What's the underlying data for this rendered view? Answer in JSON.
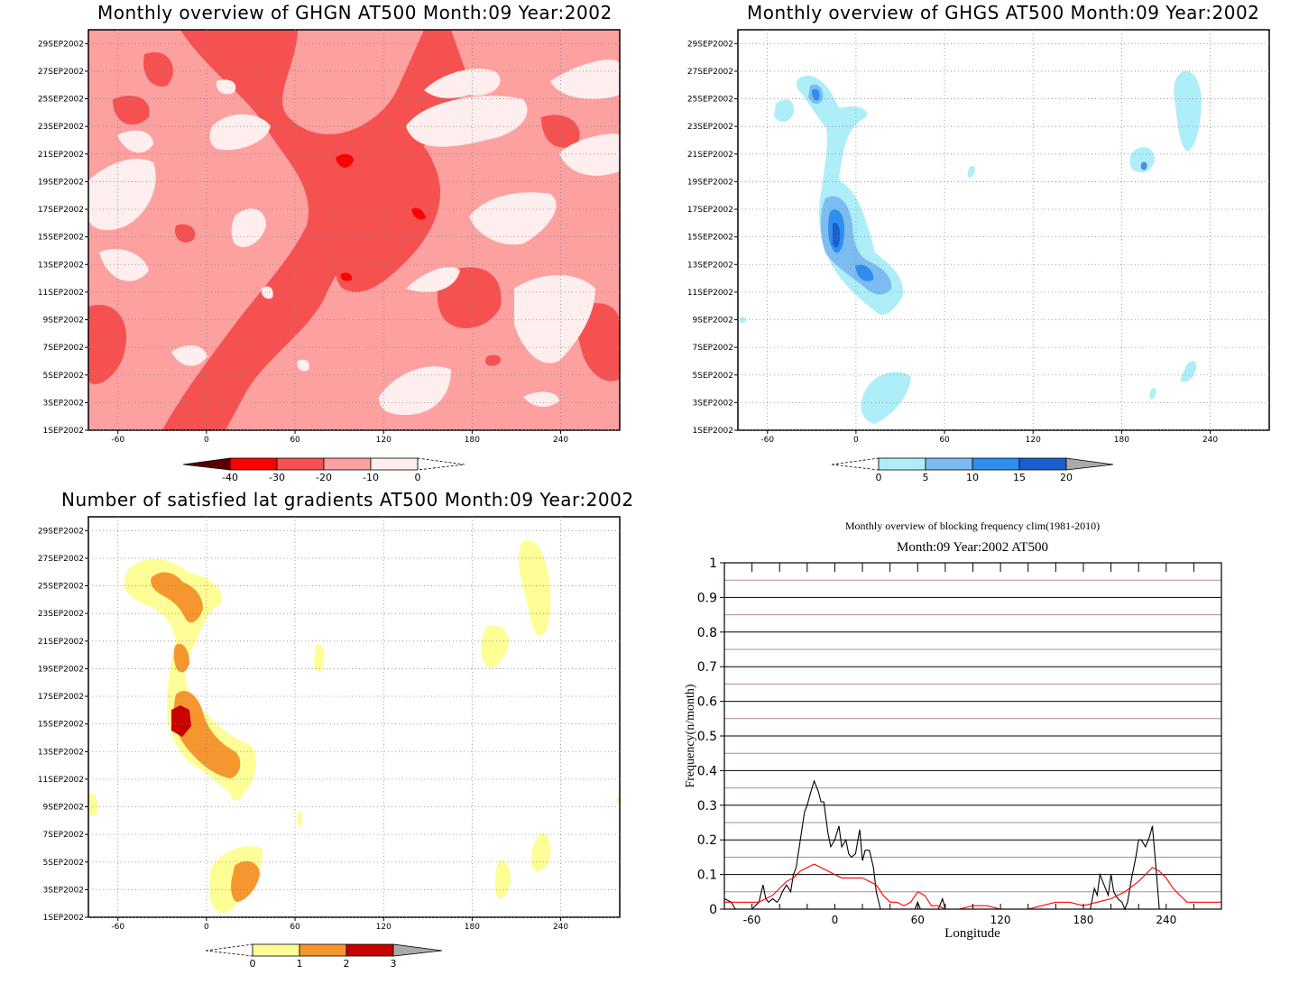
{
  "panels": [
    {
      "id": "ghgn",
      "title": "Monthly overview of GHGN AT500 Month:09 Year:2002",
      "type": "contour",
      "colorbar": {
        "ticks": [
          "-40",
          "-30",
          "-20",
          "-10",
          "0"
        ]
      },
      "colors": [
        "#5a0000",
        "#ff0000",
        "#f65151",
        "#fda0a0",
        "#feeeee"
      ]
    },
    {
      "id": "ghgs",
      "title": "Monthly overview of GHGS AT500 Month:09 Year:2002",
      "type": "contour",
      "colorbar": {
        "ticks": [
          "0",
          "5",
          "10",
          "15",
          "20"
        ]
      },
      "colors": [
        "#aeeef8",
        "#7cbcf0",
        "#2d8ef0",
        "#1a5fd0",
        "#aaaaaa"
      ]
    },
    {
      "id": "gradients",
      "title": "Number of satisfied lat gradients AT500 Month:09 Year:2002",
      "type": "contour",
      "colorbar": {
        "ticks": [
          "0",
          "1",
          "2",
          "3"
        ]
      },
      "colors": [
        "#fefe96",
        "#f6962e",
        "#c80000",
        "#aaaaaa"
      ]
    }
  ],
  "date_ticks": [
    "29SEP2002",
    "27SEP2002",
    "25SEP2002",
    "23SEP2002",
    "21SEP2002",
    "19SEP2002",
    "17SEP2002",
    "15SEP2002",
    "13SEP2002",
    "11SEP2002",
    "9SEP2002",
    "7SEP2002",
    "5SEP2002",
    "3SEP2002",
    "1SEP2002"
  ],
  "lon_ticks": [
    "-60",
    "0",
    "60",
    "120",
    "180",
    "240"
  ],
  "chart_data": {
    "type": "line",
    "title": "Monthly overview of blocking frequency clim(1981-2010)",
    "subtitle": "Month:09 Year:2002  AT500",
    "xlabel": "Longitude",
    "ylabel": "Frequency(n/month)",
    "xlim": [
      -80,
      280
    ],
    "ylim": [
      0,
      1
    ],
    "xticks": [
      "-60",
      "0",
      "60",
      "120",
      "180",
      "240"
    ],
    "yticks": [
      "0",
      "0.1",
      "0.2",
      "0.3",
      "0.4",
      "0.5",
      "0.6",
      "0.7",
      "0.8",
      "0.9",
      "1"
    ],
    "grid": true,
    "series": [
      {
        "color": "#000000",
        "x": [
          -80,
          -75,
          -72,
          -70,
          -65,
          -60,
          -55,
          -52,
          -50,
          -48,
          -45,
          -42,
          -40,
          -38,
          -35,
          -32,
          -30,
          -28,
          -25,
          -22,
          -20,
          -18,
          -15,
          -12,
          -10,
          -8,
          -5,
          -3,
          0,
          3,
          5,
          8,
          10,
          12,
          15,
          18,
          20,
          22,
          25,
          28,
          30,
          33,
          35,
          38,
          40,
          45,
          50,
          55,
          58,
          60,
          62,
          65,
          70,
          75,
          78,
          80,
          85,
          90,
          100,
          110,
          120,
          130,
          140,
          150,
          160,
          170,
          180,
          185,
          188,
          190,
          192,
          195,
          198,
          200,
          202,
          205,
          208,
          210,
          212,
          215,
          218,
          220,
          222,
          225,
          228,
          230,
          233,
          235,
          240,
          250,
          260,
          270,
          280
        ],
        "y": [
          0.03,
          0.02,
          0,
          0,
          0,
          0,
          0.02,
          0.07,
          0.03,
          0.02,
          0.03,
          0.02,
          0.03,
          0.05,
          0.07,
          0.05,
          0.1,
          0.12,
          0.2,
          0.28,
          0.3,
          0.33,
          0.37,
          0.34,
          0.31,
          0.31,
          0.22,
          0.18,
          0.2,
          0.24,
          0.18,
          0.2,
          0.16,
          0.15,
          0.16,
          0.23,
          0.14,
          0.17,
          0.17,
          0.12,
          0.05,
          0,
          0,
          0,
          0,
          0,
          0,
          0,
          0,
          0.02,
          0,
          0,
          0,
          0,
          0.03,
          0,
          0,
          0,
          0,
          0,
          0,
          0,
          0,
          0,
          0,
          0,
          0,
          0,
          0.06,
          0.04,
          0.1,
          0.07,
          0.04,
          0.1,
          0.05,
          0.03,
          0.02,
          0,
          0.02,
          0.09,
          0.15,
          0.2,
          0.2,
          0.18,
          0.21,
          0.24,
          0.1,
          0,
          0,
          0,
          0,
          0,
          0
        ]
      },
      {
        "color": "#ff0000",
        "x": [
          -80,
          -75,
          -70,
          -65,
          -60,
          -55,
          -50,
          -45,
          -40,
          -35,
          -30,
          -25,
          -20,
          -15,
          -10,
          -5,
          0,
          5,
          10,
          15,
          20,
          25,
          30,
          35,
          40,
          45,
          50,
          55,
          60,
          65,
          70,
          75,
          80,
          85,
          90,
          100,
          110,
          120,
          130,
          140,
          150,
          160,
          170,
          180,
          190,
          200,
          210,
          220,
          225,
          230,
          235,
          240,
          245,
          250,
          255,
          260,
          265,
          270,
          275,
          280
        ],
        "y": [
          0.02,
          0.02,
          0.02,
          0.02,
          0.02,
          0.02,
          0.03,
          0.04,
          0.06,
          0.08,
          0.09,
          0.11,
          0.12,
          0.13,
          0.12,
          0.11,
          0.1,
          0.09,
          0.09,
          0.09,
          0.09,
          0.08,
          0.07,
          0.04,
          0.02,
          0.02,
          0.01,
          0.02,
          0.05,
          0.04,
          0.01,
          0.01,
          0,
          0,
          0,
          0.01,
          0.01,
          0,
          0,
          0,
          0.01,
          0.02,
          0.02,
          0.01,
          0.02,
          0.03,
          0.05,
          0.08,
          0.1,
          0.12,
          0.11,
          0.09,
          0.06,
          0.04,
          0.02,
          0.02,
          0.02,
          0.02,
          0.02,
          0.02
        ]
      }
    ]
  }
}
